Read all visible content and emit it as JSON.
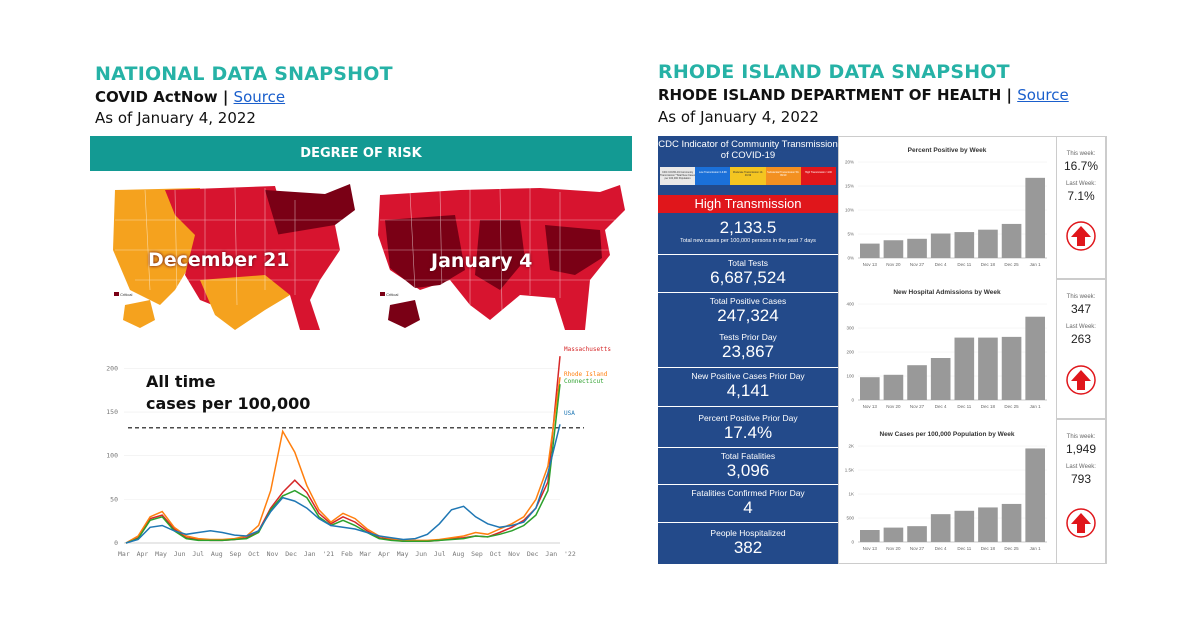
{
  "national": {
    "title": "NATIONAL DATA SNAPSHOT",
    "subtitle": "COVID ActNow |",
    "source_link": "Source",
    "as_of": "As of January 4, 2022",
    "risk_bar": "DEGREE OF RISK",
    "map_dec_label": "December 21",
    "map_jan_label": "January 4",
    "map_legend": "Critical",
    "annotation_line1": "All time",
    "annotation_line2": "cases per 100,000",
    "colors": {
      "low_risk": "#f5a21e",
      "high_risk": "#d7142f",
      "critical": "#7a0015",
      "teal": "#26b2a6"
    }
  },
  "history_chart": {
    "type": "line",
    "x_ticks": [
      "Mar",
      "Apr",
      "May",
      "Jun",
      "Jul",
      "Aug",
      "Sep",
      "Oct",
      "Nov",
      "Dec",
      "Jan",
      "'21",
      "Feb",
      "Mar",
      "Apr",
      "May",
      "Jun",
      "Jul",
      "Aug",
      "Sep",
      "Oct",
      "Nov",
      "Dec",
      "Jan",
      "'22"
    ],
    "y_ticks": [
      "0",
      "50",
      "100",
      "150",
      "200"
    ],
    "ylim": [
      0,
      220
    ],
    "threshold": 132,
    "series": [
      {
        "name": "Massachusetts",
        "color": "#d62728",
        "values": [
          0,
          6,
          28,
          32,
          16,
          6,
          4,
          3,
          3,
          4,
          6,
          14,
          40,
          58,
          72,
          58,
          34,
          22,
          30,
          24,
          14,
          6,
          4,
          2,
          2,
          2,
          3,
          5,
          6,
          8,
          7,
          12,
          18,
          26,
          40,
          70,
          214
        ]
      },
      {
        "name": "Rhode Island",
        "color": "#ff7f0e",
        "values": [
          0,
          8,
          30,
          36,
          18,
          8,
          5,
          4,
          4,
          5,
          8,
          20,
          60,
          128,
          104,
          66,
          38,
          24,
          34,
          28,
          16,
          8,
          5,
          3,
          3,
          3,
          4,
          6,
          8,
          12,
          10,
          16,
          22,
          30,
          50,
          88,
          190
        ]
      },
      {
        "name": "Connecticut",
        "color": "#2ca02c",
        "values": [
          0,
          5,
          26,
          30,
          14,
          5,
          3,
          3,
          3,
          4,
          5,
          12,
          38,
          54,
          60,
          52,
          30,
          20,
          26,
          20,
          12,
          5,
          3,
          2,
          2,
          2,
          3,
          4,
          5,
          8,
          7,
          10,
          14,
          20,
          32,
          60,
          182
        ]
      },
      {
        "name": "USA",
        "color": "#1f77b4",
        "values": [
          0,
          4,
          18,
          20,
          14,
          10,
          12,
          14,
          12,
          9,
          8,
          14,
          36,
          52,
          48,
          40,
          28,
          20,
          18,
          16,
          12,
          8,
          6,
          4,
          5,
          10,
          22,
          38,
          42,
          30,
          22,
          18,
          20,
          24,
          40,
          80,
          136
        ]
      }
    ]
  },
  "rhode_island": {
    "title": "RHODE ISLAND DATA SNAPSHOT",
    "subtitle": "RHODE ISLAND DEPARTMENT OF HEALTH |",
    "source_link": "Source",
    "as_of": "As of January 4, 2022",
    "cdc_header": "CDC Indicator of Community Transmission of COVID-19",
    "levels": [
      "CDC COVID-19 Community Transmission *Total New Cases per 100,000 Population",
      "Low Transmission 0-9.99",
      "Moderate Transmission 10-49.99",
      "Substantial Transmission 50-99.99",
      "High Transmission >100"
    ],
    "level_colors": [
      "#e9e9e9",
      "#1b70d8",
      "#f4c521",
      "#f39021",
      "#e0161b"
    ],
    "high_transmission": "High Transmission",
    "new_cases_value": "2,133.5",
    "new_cases_note": "Total new cases per 100,000 persons in the past 7 days",
    "stats": [
      {
        "label": "Total Tests",
        "value": "6,687,524"
      },
      {
        "label": "Total Positive Cases",
        "value": "247,324"
      },
      {
        "label": "Tests Prior Day",
        "value": "23,867"
      },
      {
        "label": "New Positive Cases Prior Day",
        "value": "4,141"
      },
      {
        "label": "Percent Positive Prior Day",
        "value": "17.4%"
      },
      {
        "label": "Total Fatalities",
        "value": "3,096"
      },
      {
        "label": "Fatalities Confirmed Prior Day",
        "value": "4"
      },
      {
        "label": "People Hospitalized",
        "value": "382"
      }
    ],
    "weeks": [
      "Nov 13",
      "Nov 20",
      "Nov 27",
      "Dec 4",
      "Dec 11",
      "Dec 18",
      "Dec 25",
      "Jan 1"
    ],
    "charts": [
      {
        "title": "Percent Positive by Week",
        "y_ticks": [
          "0%",
          "5%",
          "10%",
          "15%",
          "20%"
        ],
        "ylim": [
          0,
          20
        ],
        "values": [
          3.0,
          3.7,
          4.0,
          5.1,
          5.4,
          5.9,
          7.1,
          16.7
        ],
        "this_week_label": "This week:",
        "this_week": "16.7%",
        "last_week_label": "Last Week:",
        "last_week": "7.1%"
      },
      {
        "title": "New Hospital Admissions by Week",
        "y_ticks": [
          "0",
          "100",
          "200",
          "300",
          "400"
        ],
        "ylim": [
          0,
          400
        ],
        "values": [
          95,
          105,
          145,
          175,
          260,
          260,
          263,
          347
        ],
        "this_week_label": "This week:",
        "this_week": "347",
        "last_week_label": "Last Week:",
        "last_week": "263"
      },
      {
        "title": "New Cases per 100,000 Population by Week",
        "y_ticks": [
          "0",
          "500",
          "1K",
          "1.5K",
          "2K"
        ],
        "ylim": [
          0,
          2000
        ],
        "values": [
          250,
          300,
          330,
          580,
          650,
          720,
          793,
          1949
        ],
        "this_week_label": "This week:",
        "this_week": "1,949",
        "last_week_label": "Last Week:",
        "last_week": "793"
      }
    ]
  }
}
